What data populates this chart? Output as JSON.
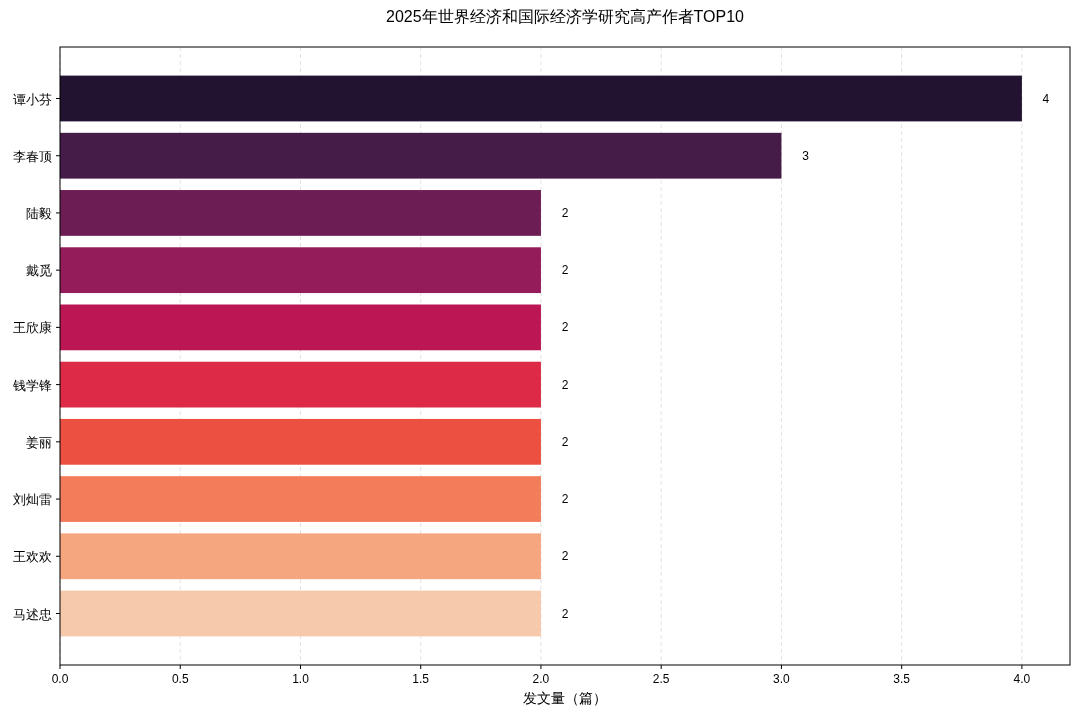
{
  "chart_data": {
    "type": "bar",
    "orientation": "horizontal",
    "title": "2025年世界经济和国际经济学研究高产作者TOP10",
    "xlabel": "发文量（篇）",
    "categories": [
      "谭小芬",
      "李春顶",
      "陆毅",
      "戴觅",
      "王欣康",
      "钱学锋",
      "姜丽",
      "刘灿雷",
      "王欢欢",
      "马述忠"
    ],
    "values": [
      4,
      3,
      2,
      2,
      2,
      2,
      2,
      2,
      2,
      2
    ],
    "colors": [
      "#221331",
      "#451c47",
      "#6c1d53",
      "#951c5b",
      "#bd1655",
      "#dc2a47",
      "#ec5040",
      "#f37d5b",
      "#f5a67f",
      "#f6c9ac"
    ],
    "xlim": [
      0,
      4.2
    ],
    "xticks": [
      {
        "value": 0,
        "label": "0.0"
      },
      {
        "value": 0.5,
        "label": "0.5"
      },
      {
        "value": 1,
        "label": "1.0"
      },
      {
        "value": 1.5,
        "label": "1.5"
      },
      {
        "value": 2,
        "label": "2.0"
      },
      {
        "value": 2.5,
        "label": "2.5"
      },
      {
        "value": 3,
        "label": "3.0"
      },
      {
        "value": 3.5,
        "label": "3.5"
      },
      {
        "value": 4,
        "label": "4.0"
      }
    ],
    "grid": "x",
    "data_labels": true
  }
}
